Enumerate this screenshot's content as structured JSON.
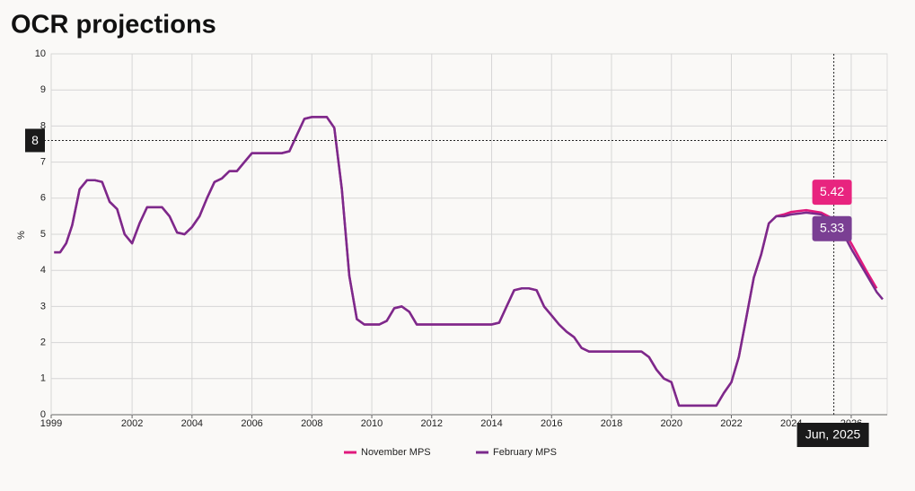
{
  "chart_data": {
    "type": "line",
    "title": "OCR projections",
    "y_label": "%",
    "x": [
      1999.4,
      1999.6,
      1999.8,
      2000.0,
      2000.25,
      2000.5,
      2000.75,
      2001.0,
      2001.25,
      2001.5,
      2001.75,
      2002.0,
      2002.25,
      2002.5,
      2002.75,
      2003.0,
      2003.25,
      2003.5,
      2003.75,
      2004.0,
      2004.25,
      2004.5,
      2004.75,
      2005.0,
      2005.25,
      2005.5,
      2005.75,
      2006.0,
      2006.5,
      2007.0,
      2007.25,
      2007.5,
      2007.75,
      2008.0,
      2008.5,
      2008.75,
      2009.0,
      2009.25,
      2009.5,
      2009.75,
      2010.25,
      2010.5,
      2010.75,
      2011.0,
      2011.25,
      2011.5,
      2012.0,
      2013.0,
      2014.0,
      2014.25,
      2014.5,
      2014.75,
      2015.0,
      2015.25,
      2015.5,
      2015.75,
      2016.0,
      2016.25,
      2016.5,
      2016.75,
      2017.0,
      2017.25,
      2018.0,
      2019.0,
      2019.25,
      2019.5,
      2019.75,
      2020.0,
      2020.25,
      2021.0,
      2021.5,
      2021.75,
      2022.0,
      2022.25,
      2022.5,
      2022.75,
      2023.0,
      2023.25,
      2023.5,
      2023.75,
      2024.0,
      2024.5,
      2025.0,
      2025.42,
      2025.75,
      2026.0,
      2026.5,
      2026.85,
      2027.05
    ],
    "series": [
      {
        "name": "November MPS",
        "color": "#e0197d",
        "values": [
          4.5,
          4.5,
          4.75,
          5.25,
          6.25,
          6.5,
          6.5,
          6.45,
          5.9,
          5.7,
          5.0,
          4.75,
          5.3,
          5.75,
          5.75,
          5.75,
          5.5,
          5.05,
          5.0,
          5.2,
          5.5,
          6.0,
          6.45,
          6.55,
          6.75,
          6.75,
          7.0,
          7.25,
          7.25,
          7.25,
          7.3,
          7.75,
          8.2,
          8.25,
          8.25,
          7.95,
          6.25,
          3.85,
          2.65,
          2.5,
          2.5,
          2.6,
          2.95,
          3.0,
          2.85,
          2.5,
          2.5,
          2.5,
          2.5,
          2.55,
          3.0,
          3.45,
          3.5,
          3.5,
          3.45,
          3.0,
          2.75,
          2.5,
          2.3,
          2.15,
          1.85,
          1.75,
          1.75,
          1.75,
          1.6,
          1.25,
          1.0,
          0.9,
          0.25,
          0.25,
          0.25,
          0.6,
          0.9,
          1.6,
          2.7,
          3.8,
          4.45,
          5.3,
          5.5,
          5.55,
          5.62,
          5.67,
          5.6,
          5.42,
          5.1,
          4.75,
          4.0,
          3.5,
          null
        ]
      },
      {
        "name": "February MPS",
        "color": "#7b2a8c",
        "values": [
          4.5,
          4.5,
          4.75,
          5.25,
          6.25,
          6.5,
          6.5,
          6.45,
          5.9,
          5.7,
          5.0,
          4.75,
          5.3,
          5.75,
          5.75,
          5.75,
          5.5,
          5.05,
          5.0,
          5.2,
          5.5,
          6.0,
          6.45,
          6.55,
          6.75,
          6.75,
          7.0,
          7.25,
          7.25,
          7.25,
          7.3,
          7.75,
          8.2,
          8.25,
          8.25,
          7.95,
          6.25,
          3.85,
          2.65,
          2.5,
          2.5,
          2.6,
          2.95,
          3.0,
          2.85,
          2.5,
          2.5,
          2.5,
          2.5,
          2.55,
          3.0,
          3.45,
          3.5,
          3.5,
          3.45,
          3.0,
          2.75,
          2.5,
          2.3,
          2.15,
          1.85,
          1.75,
          1.75,
          1.75,
          1.6,
          1.25,
          1.0,
          0.9,
          0.25,
          0.25,
          0.25,
          0.6,
          0.9,
          1.6,
          2.7,
          3.8,
          4.45,
          5.3,
          5.5,
          5.5,
          5.55,
          5.6,
          5.55,
          5.33,
          5.0,
          4.6,
          3.9,
          3.4,
          3.2
        ]
      }
    ],
    "xlim": [
      1999.3,
      2027.2
    ],
    "xticks": [
      {
        "value": 1999.3,
        "label": "1999"
      },
      2002,
      2004,
      2006,
      2008,
      2010,
      2012,
      2014,
      2016,
      2018,
      2020,
      2022,
      2024,
      2026
    ],
    "ylim": [
      0,
      10
    ],
    "yticks": [
      0,
      1,
      2,
      3,
      4,
      5,
      6,
      7,
      8,
      9,
      10
    ],
    "grid": true,
    "legend": "bottom",
    "tooltip": {
      "x": 2025.42,
      "x_label": "Jun, 2025",
      "y": 7.6,
      "y_label": "8",
      "values": [
        5.42,
        5.33
      ],
      "colors": [
        "#e8247f",
        "#7a3f93"
      ]
    }
  }
}
